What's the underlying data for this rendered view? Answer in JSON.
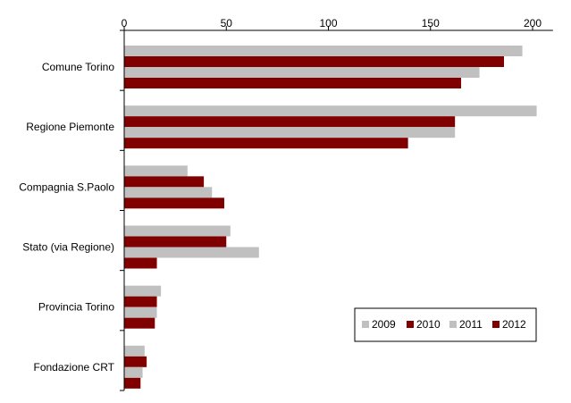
{
  "chart_data": {
    "type": "bar",
    "orientation": "horizontal",
    "title": "",
    "xlabel": "",
    "ylabel": "",
    "xlim": [
      0,
      210
    ],
    "x_ticks": [
      0,
      50,
      100,
      150,
      200
    ],
    "x_axis_position": "top",
    "grid": false,
    "legend_position": "bottom-right",
    "categories": [
      "Comune Torino",
      "Regione Piemonte",
      "Compagnia S.Paolo",
      "Stato (via Regione)",
      "Provincia Torino",
      "Fondazione CRT"
    ],
    "series": [
      {
        "name": "2009",
        "color": "#c0c0c0",
        "values": [
          195,
          202,
          31,
          52,
          18,
          10
        ]
      },
      {
        "name": "2010",
        "color": "#800000",
        "values": [
          186,
          162,
          39,
          50,
          16,
          11
        ]
      },
      {
        "name": "2011",
        "color": "#c0c0c0",
        "values": [
          174,
          162,
          43,
          66,
          16,
          9
        ]
      },
      {
        "name": "2012",
        "color": "#800000",
        "values": [
          165,
          139,
          49,
          16,
          15,
          8
        ]
      }
    ]
  }
}
